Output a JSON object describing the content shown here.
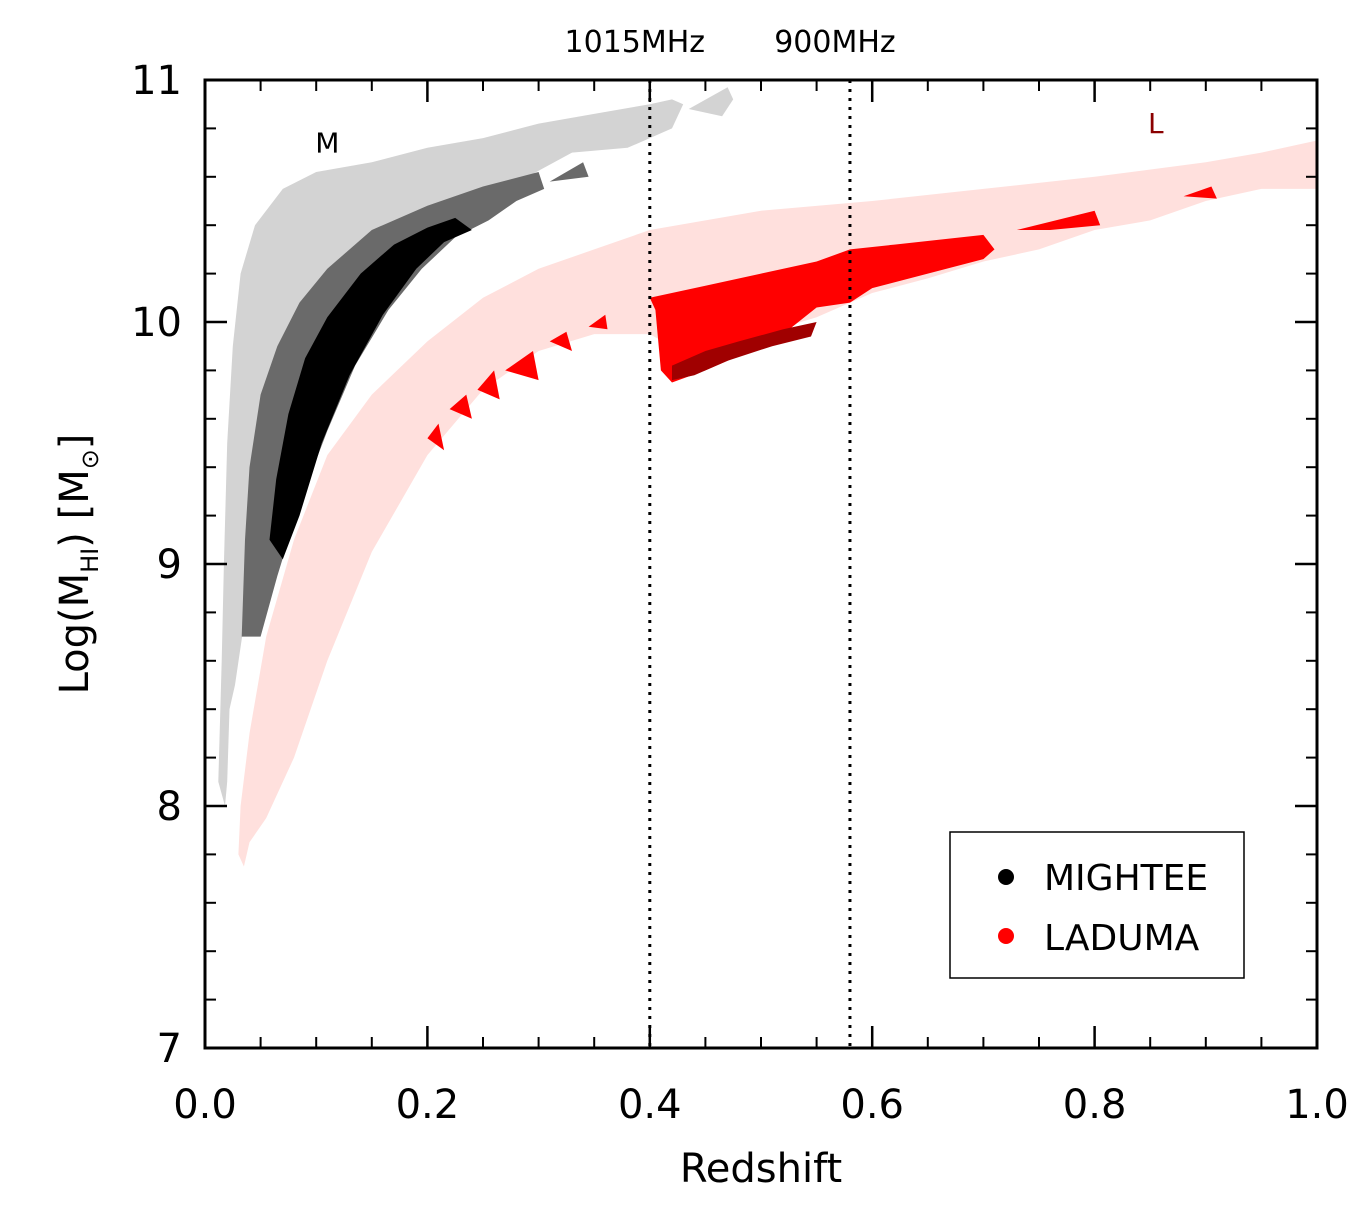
{
  "chart_data": {
    "type": "area",
    "title": "",
    "xlabel": "Redshift",
    "ylabel": {
      "prefix": "Log(M",
      "subscript": "HI",
      "suffix": ")  [M",
      "symbol": "⊙",
      "close": "]"
    },
    "xlim": [
      0.0,
      1.0
    ],
    "ylim": [
      7,
      11
    ],
    "x_ticks": [
      "0.0",
      "0.2",
      "0.4",
      "0.6",
      "0.8",
      "1.0"
    ],
    "y_ticks": [
      "7",
      "8",
      "9",
      "10",
      "11"
    ],
    "grid": false,
    "frequency_markers": [
      {
        "label": "1015MHz",
        "z": 0.4
      },
      {
        "label": "900MHz",
        "z": 0.58
      }
    ],
    "corner_labels": [
      {
        "text": "M",
        "z": 0.11,
        "logm": 10.7,
        "color": "#000000"
      },
      {
        "text": "L",
        "z": 0.855,
        "logm": 10.78,
        "color": "#8b0000"
      }
    ],
    "legend": {
      "placement": "lower-right",
      "entries": [
        {
          "name": "MIGHTEE",
          "color": "#000000"
        },
        {
          "name": "LADUMA",
          "color": "#ff0000"
        }
      ]
    },
    "colors": {
      "mightee_outer": "#d3d3d3",
      "mightee_mid": "#6a6a6a",
      "mightee_inner": "#000000",
      "laduma_outer": "#ffe0dd",
      "laduma_mid": "#ff0000",
      "laduma_inner": "#a00000"
    },
    "regions": [
      {
        "series": "MIGHTEE",
        "level": "outer",
        "color_key": "mightee_outer",
        "points": [
          [
            0.012,
            8.1
          ],
          [
            0.015,
            8.6
          ],
          [
            0.017,
            9.0
          ],
          [
            0.02,
            9.5
          ],
          [
            0.025,
            9.9
          ],
          [
            0.032,
            10.2
          ],
          [
            0.045,
            10.4
          ],
          [
            0.07,
            10.55
          ],
          [
            0.1,
            10.62
          ],
          [
            0.15,
            10.66
          ],
          [
            0.2,
            10.72
          ],
          [
            0.25,
            10.76
          ],
          [
            0.3,
            10.82
          ],
          [
            0.35,
            10.86
          ],
          [
            0.4,
            10.9
          ],
          [
            0.42,
            10.92
          ],
          [
            0.43,
            10.9
          ],
          [
            0.42,
            10.8
          ],
          [
            0.38,
            10.72
          ],
          [
            0.33,
            10.7
          ],
          [
            0.29,
            10.6
          ],
          [
            0.25,
            10.52
          ],
          [
            0.21,
            10.45
          ],
          [
            0.17,
            10.35
          ],
          [
            0.14,
            10.2
          ],
          [
            0.11,
            10.0
          ],
          [
            0.08,
            9.7
          ],
          [
            0.06,
            9.4
          ],
          [
            0.045,
            9.0
          ],
          [
            0.035,
            8.75
          ],
          [
            0.027,
            8.5
          ],
          [
            0.022,
            8.4
          ],
          [
            0.02,
            8.1
          ],
          [
            0.018,
            8.0
          ]
        ]
      },
      {
        "series": "MIGHTEE",
        "level": "outer",
        "color_key": "mightee_outer",
        "points": [
          [
            0.435,
            10.88
          ],
          [
            0.47,
            10.97
          ],
          [
            0.475,
            10.92
          ],
          [
            0.465,
            10.85
          ]
        ]
      },
      {
        "series": "MIGHTEE",
        "level": "mid",
        "color_key": "mightee_mid",
        "points": [
          [
            0.033,
            8.7
          ],
          [
            0.036,
            9.1
          ],
          [
            0.04,
            9.4
          ],
          [
            0.05,
            9.7
          ],
          [
            0.065,
            9.9
          ],
          [
            0.085,
            10.08
          ],
          [
            0.11,
            10.22
          ],
          [
            0.15,
            10.38
          ],
          [
            0.2,
            10.48
          ],
          [
            0.25,
            10.56
          ],
          [
            0.3,
            10.62
          ],
          [
            0.305,
            10.55
          ],
          [
            0.28,
            10.5
          ],
          [
            0.255,
            10.42
          ],
          [
            0.225,
            10.35
          ],
          [
            0.195,
            10.22
          ],
          [
            0.165,
            10.05
          ],
          [
            0.135,
            9.82
          ],
          [
            0.11,
            9.55
          ],
          [
            0.085,
            9.25
          ],
          [
            0.065,
            8.95
          ],
          [
            0.05,
            8.7
          ]
        ]
      },
      {
        "series": "MIGHTEE",
        "level": "mid",
        "color_key": "mightee_mid",
        "points": [
          [
            0.31,
            10.58
          ],
          [
            0.34,
            10.66
          ],
          [
            0.345,
            10.6
          ]
        ]
      },
      {
        "series": "MIGHTEE",
        "level": "inner",
        "color_key": "mightee_inner",
        "points": [
          [
            0.058,
            9.1
          ],
          [
            0.064,
            9.35
          ],
          [
            0.075,
            9.62
          ],
          [
            0.09,
            9.85
          ],
          [
            0.11,
            10.02
          ],
          [
            0.14,
            10.2
          ],
          [
            0.17,
            10.32
          ],
          [
            0.2,
            10.39
          ],
          [
            0.225,
            10.43
          ],
          [
            0.24,
            10.38
          ],
          [
            0.215,
            10.33
          ],
          [
            0.19,
            10.22
          ],
          [
            0.16,
            10.03
          ],
          [
            0.13,
            9.78
          ],
          [
            0.105,
            9.5
          ],
          [
            0.085,
            9.2
          ],
          [
            0.07,
            9.02
          ]
        ]
      },
      {
        "series": "LADUMA",
        "level": "outer",
        "color_key": "laduma_outer",
        "points": [
          [
            0.03,
            7.8
          ],
          [
            0.032,
            8.0
          ],
          [
            0.04,
            8.3
          ],
          [
            0.055,
            8.7
          ],
          [
            0.08,
            9.1
          ],
          [
            0.11,
            9.45
          ],
          [
            0.15,
            9.7
          ],
          [
            0.2,
            9.92
          ],
          [
            0.25,
            10.1
          ],
          [
            0.3,
            10.22
          ],
          [
            0.35,
            10.3
          ],
          [
            0.4,
            10.38
          ],
          [
            0.5,
            10.46
          ],
          [
            0.6,
            10.5
          ],
          [
            0.7,
            10.55
          ],
          [
            0.8,
            10.6
          ],
          [
            0.9,
            10.66
          ],
          [
            0.95,
            10.7
          ],
          [
            1.0,
            10.75
          ],
          [
            1.0,
            10.55
          ],
          [
            0.95,
            10.55
          ],
          [
            0.9,
            10.5
          ],
          [
            0.85,
            10.42
          ],
          [
            0.8,
            10.38
          ],
          [
            0.75,
            10.3
          ],
          [
            0.7,
            10.25
          ],
          [
            0.65,
            10.18
          ],
          [
            0.6,
            10.12
          ],
          [
            0.55,
            10.02
          ],
          [
            0.5,
            9.95
          ],
          [
            0.45,
            9.82
          ],
          [
            0.4,
            9.95
          ],
          [
            0.35,
            9.95
          ],
          [
            0.3,
            9.88
          ],
          [
            0.25,
            9.72
          ],
          [
            0.2,
            9.45
          ],
          [
            0.15,
            9.05
          ],
          [
            0.11,
            8.6
          ],
          [
            0.08,
            8.2
          ],
          [
            0.055,
            7.95
          ],
          [
            0.04,
            7.85
          ],
          [
            0.035,
            7.75
          ]
        ]
      },
      {
        "series": "LADUMA",
        "level": "mid",
        "color_key": "laduma_mid",
        "points": [
          [
            0.4,
            10.1
          ],
          [
            0.45,
            10.15
          ],
          [
            0.5,
            10.2
          ],
          [
            0.55,
            10.25
          ],
          [
            0.58,
            10.3
          ],
          [
            0.62,
            10.32
          ],
          [
            0.66,
            10.34
          ],
          [
            0.7,
            10.36
          ],
          [
            0.71,
            10.3
          ],
          [
            0.7,
            10.26
          ],
          [
            0.65,
            10.2
          ],
          [
            0.6,
            10.14
          ],
          [
            0.58,
            10.08
          ],
          [
            0.55,
            10.06
          ],
          [
            0.52,
            9.95
          ],
          [
            0.48,
            9.86
          ],
          [
            0.45,
            9.8
          ],
          [
            0.42,
            9.75
          ],
          [
            0.41,
            9.8
          ],
          [
            0.405,
            10.05
          ]
        ]
      },
      {
        "series": "LADUMA",
        "level": "mid",
        "color_key": "laduma_mid",
        "points": [
          [
            0.73,
            10.38
          ],
          [
            0.8,
            10.46
          ],
          [
            0.805,
            10.4
          ],
          [
            0.76,
            10.38
          ]
        ]
      },
      {
        "series": "LADUMA",
        "level": "mid",
        "color_key": "laduma_mid",
        "points": [
          [
            0.88,
            10.52
          ],
          [
            0.905,
            10.56
          ],
          [
            0.91,
            10.51
          ]
        ]
      },
      {
        "series": "LADUMA",
        "level": "mid",
        "color_key": "laduma_mid",
        "points": [
          [
            0.2,
            9.52
          ],
          [
            0.21,
            9.58
          ],
          [
            0.215,
            9.47
          ]
        ]
      },
      {
        "series": "LADUMA",
        "level": "mid",
        "color_key": "laduma_mid",
        "points": [
          [
            0.22,
            9.64
          ],
          [
            0.235,
            9.7
          ],
          [
            0.24,
            9.6
          ]
        ]
      },
      {
        "series": "LADUMA",
        "level": "mid",
        "color_key": "laduma_mid",
        "points": [
          [
            0.245,
            9.72
          ],
          [
            0.26,
            9.8
          ],
          [
            0.265,
            9.68
          ]
        ]
      },
      {
        "series": "LADUMA",
        "level": "mid",
        "color_key": "laduma_mid",
        "points": [
          [
            0.27,
            9.8
          ],
          [
            0.295,
            9.88
          ],
          [
            0.3,
            9.76
          ]
        ]
      },
      {
        "series": "LADUMA",
        "level": "mid",
        "color_key": "laduma_mid",
        "points": [
          [
            0.31,
            9.92
          ],
          [
            0.325,
            9.96
          ],
          [
            0.33,
            9.88
          ]
        ]
      },
      {
        "series": "LADUMA",
        "level": "mid",
        "color_key": "laduma_mid",
        "points": [
          [
            0.345,
            9.98
          ],
          [
            0.36,
            10.03
          ],
          [
            0.362,
            9.97
          ]
        ]
      },
      {
        "series": "LADUMA",
        "level": "inner",
        "color_key": "laduma_inner",
        "points": [
          [
            0.42,
            9.82
          ],
          [
            0.45,
            9.88
          ],
          [
            0.48,
            9.92
          ],
          [
            0.52,
            9.97
          ],
          [
            0.55,
            10.0
          ],
          [
            0.545,
            9.94
          ],
          [
            0.51,
            9.9
          ],
          [
            0.47,
            9.84
          ],
          [
            0.44,
            9.78
          ],
          [
            0.42,
            9.76
          ]
        ]
      }
    ]
  }
}
